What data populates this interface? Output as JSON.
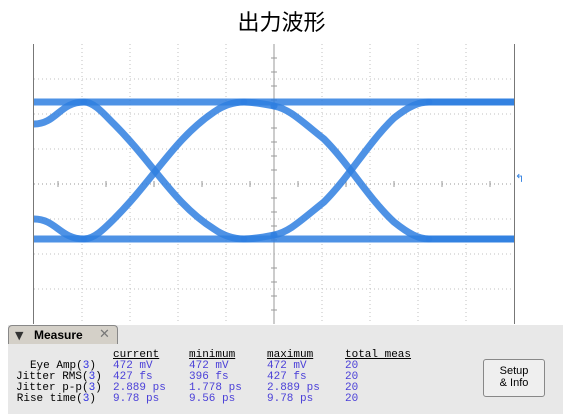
{
  "title": "出力波形",
  "trigger_marker": "↰",
  "measure": {
    "tab_label": "Measure",
    "tab_toggle_icon": "triangle-down-icon",
    "tab_close_icon": "close-icon",
    "columns": [
      "current",
      "minimum",
      "maximum",
      "total meas"
    ],
    "rows": [
      {
        "name": "Eye Amp",
        "source": "3",
        "current": "472 mV",
        "minimum": "472 mV",
        "maximum": "472 mV",
        "total": "20"
      },
      {
        "name": "Jitter RMS",
        "source": "3",
        "current": "427 fs",
        "minimum": "396 fs",
        "maximum": "427 fs",
        "total": "20"
      },
      {
        "name": "Jitter p-p",
        "source": "3",
        "current": "2.889 ps",
        "minimum": "1.778 ps",
        "maximum": "2.889 ps",
        "total": "20"
      },
      {
        "name": "Rise time",
        "source": "3",
        "current": "9.78 ps",
        "minimum": "9.56 ps",
        "maximum": "9.78 ps",
        "total": "20"
      }
    ],
    "setup_button": {
      "line1": "Setup",
      "line2": "& Info"
    }
  },
  "colors": {
    "trace": "#2f7fe0",
    "measure_value": "#4a3fd8",
    "source_number": "#3030e0",
    "panel_bg": "#e8e8e8"
  }
}
